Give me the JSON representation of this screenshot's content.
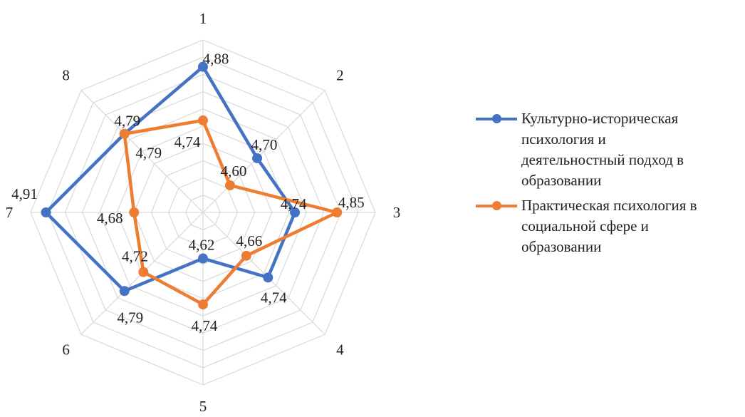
{
  "chart_data": {
    "type": "radar",
    "categories": [
      "1",
      "2",
      "3",
      "4",
      "5",
      "6",
      "7",
      "8"
    ],
    "rlim": [
      4.5,
      4.95
    ],
    "grid": true,
    "legend_position": "right",
    "series": [
      {
        "name": "Культурно-историческая психология и деятельностный подход в образовании",
        "values": [
          4.88,
          4.7,
          4.74,
          4.74,
          4.62,
          4.79,
          4.91,
          4.79
        ],
        "labels": [
          "4,88",
          "4,70",
          "4,74",
          "4,74",
          "4,62",
          "4,79",
          "4,91",
          "4,79"
        ],
        "color": "#4472C4"
      },
      {
        "name": "Практическая психология в социальной сфере и образовании",
        "values": [
          4.74,
          4.6,
          4.85,
          4.66,
          4.74,
          4.72,
          4.68,
          4.79
        ],
        "labels": [
          "4,74",
          "4,60",
          "4,85",
          "4,66",
          "4,74",
          "4,72",
          "4,68",
          "4,79"
        ],
        "color": "#ED7D31"
      }
    ]
  },
  "legend": {
    "items": [
      {
        "label_lines": [
          "Культурно-историческая",
          "психология и",
          "деятельностный подход в",
          "образовании"
        ]
      },
      {
        "label_lines": [
          "Практическая психология в",
          "социальной сфере и",
          "образовании"
        ]
      }
    ]
  }
}
